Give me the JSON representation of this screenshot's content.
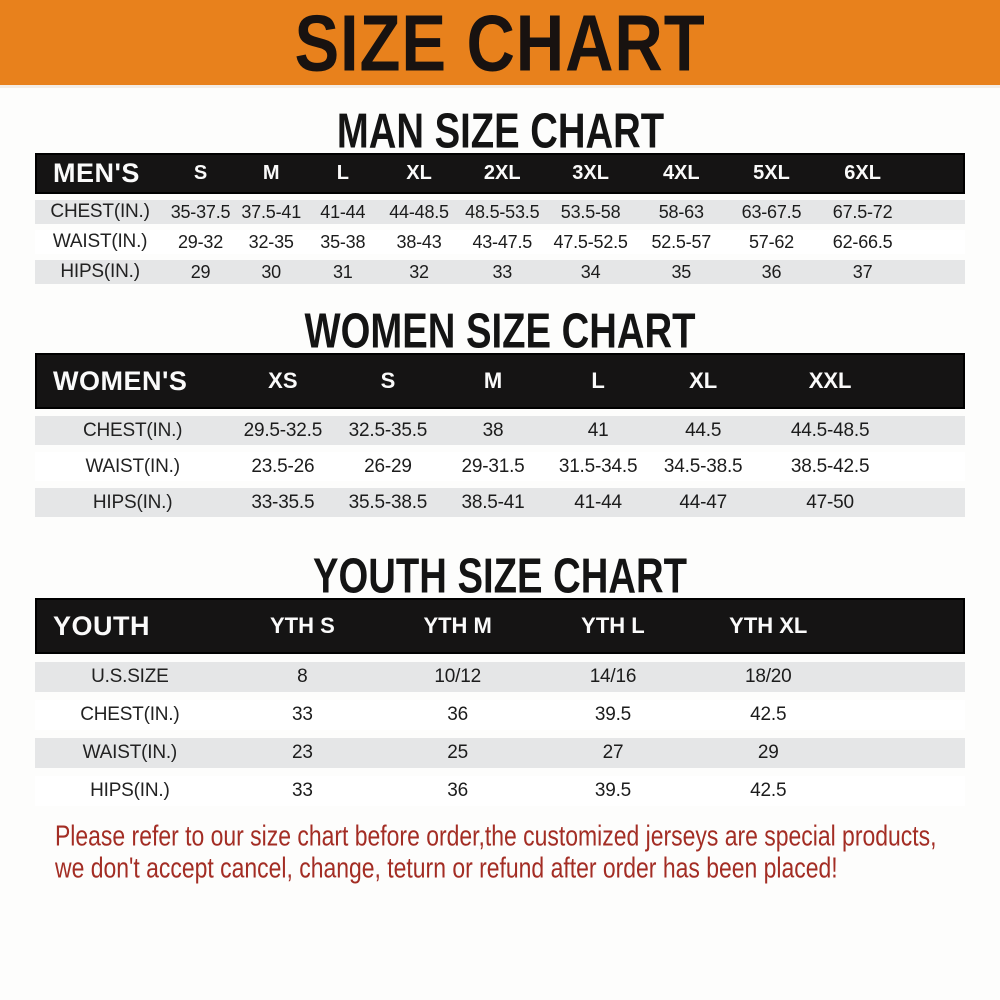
{
  "banner": {
    "title": "SIZE CHART",
    "bg_color": "#E8811C",
    "text_color": "#181210"
  },
  "sections": [
    {
      "title": "MAN SIZE CHART",
      "header_label": "MEN'S",
      "columns": [
        "S",
        "M",
        "L",
        "XL",
        "2XL",
        "3XL",
        "4XL",
        "5XL",
        "6XL"
      ],
      "rows": [
        {
          "label": "CHEST(IN.)",
          "values": [
            "35-37.5",
            "37.5-41",
            "41-44",
            "44-48.5",
            "48.5-53.5",
            "53.5-58",
            "58-63",
            "63-67.5",
            "67.5-72"
          ]
        },
        {
          "label": "WAIST(IN.)",
          "values": [
            "29-32",
            "32-35",
            "35-38",
            "38-43",
            "43-47.5",
            "47.5-52.5",
            "52.5-57",
            "57-62",
            "62-66.5"
          ]
        },
        {
          "label": "HIPS(IN.)",
          "values": [
            "29",
            "30",
            "31",
            "32",
            "33",
            "34",
            "35",
            "36",
            "37"
          ]
        }
      ]
    },
    {
      "title": "WOMEN SIZE CHART",
      "header_label": "WOMEN'S",
      "columns": [
        "XS",
        "S",
        "M",
        "L",
        "XL",
        "XXL"
      ],
      "rows": [
        {
          "label": "CHEST(IN.)",
          "values": [
            "29.5-32.5",
            "32.5-35.5",
            "38",
            "41",
            "44.5",
            "44.5-48.5"
          ]
        },
        {
          "label": "WAIST(IN.)",
          "values": [
            "23.5-26",
            "26-29",
            "29-31.5",
            "31.5-34.5",
            "34.5-38.5",
            "38.5-42.5"
          ]
        },
        {
          "label": "HIPS(IN.)",
          "values": [
            "33-35.5",
            "35.5-38.5",
            "38.5-41",
            "41-44",
            "44-47",
            "47-50"
          ]
        }
      ]
    },
    {
      "title": "YOUTH SIZE CHART",
      "header_label": "YOUTH",
      "columns": [
        "YTH S",
        "YTH M",
        "YTH L",
        "YTH XL"
      ],
      "rows": [
        {
          "label": "U.S.SIZE",
          "values": [
            "8",
            "10/12",
            "14/16",
            "18/20"
          ]
        },
        {
          "label": "CHEST(IN.)",
          "values": [
            "33",
            "36",
            "39.5",
            "42.5"
          ]
        },
        {
          "label": "WAIST(IN.)",
          "values": [
            "23",
            "25",
            "27",
            "29"
          ]
        },
        {
          "label": "HIPS(IN.)",
          "values": [
            "33",
            "36",
            "39.5",
            "42.5"
          ]
        }
      ]
    }
  ],
  "footer": {
    "line1": "Please refer to our size chart before order,the customized jerseys are special products,",
    "line2": "we don't accept cancel, change, teturn or refund after order has been placed!",
    "color": "#A32D24"
  }
}
